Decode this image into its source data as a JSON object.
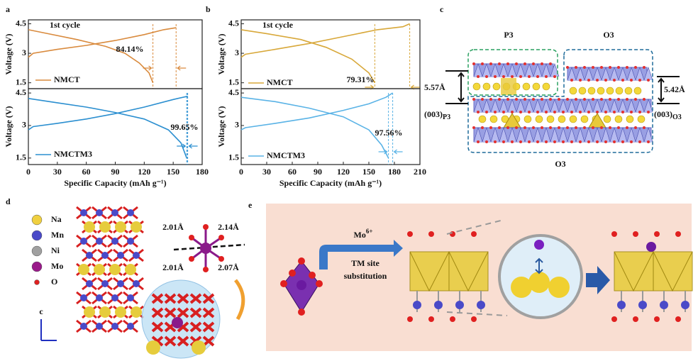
{
  "panel_labels": [
    "a",
    "b",
    "c",
    "d",
    "e"
  ],
  "chart_data": [
    {
      "type": "line",
      "ylabel": "Voltage (V)",
      "note": "1st cycle",
      "label": "NMCT",
      "annotation": "84.14%",
      "xlim": [
        0,
        180
      ],
      "ylim": [
        1.2,
        4.7
      ],
      "yticks": [
        1.5,
        3.0,
        4.5
      ],
      "series": [
        {
          "color": "#d98a3d",
          "x": [
            0,
            5,
            30,
            60,
            90,
            120,
            140,
            153
          ],
          "values": [
            2.8,
            3.0,
            3.2,
            3.4,
            3.65,
            3.95,
            4.2,
            4.3
          ]
        },
        {
          "color": "#d98a3d",
          "x": [
            0,
            20,
            50,
            80,
            100,
            115,
            125,
            129
          ],
          "values": [
            4.2,
            4.0,
            3.7,
            3.35,
            3.0,
            2.5,
            2.0,
            1.5
          ]
        }
      ]
    },
    {
      "type": "line",
      "ylabel": "Voltage (V)",
      "xlabel": "Specific Capacity (mAh g⁻¹)",
      "label": "NMCTM3",
      "annotation": "99.65%",
      "xlim": [
        0,
        180
      ],
      "ylim": [
        1.2,
        4.7
      ],
      "yticks": [
        1.5,
        3.0,
        4.5
      ],
      "xticks": [
        0,
        30,
        60,
        90,
        120,
        150,
        180
      ],
      "series": [
        {
          "color": "#2b8fd0",
          "x": [
            0,
            5,
            30,
            60,
            90,
            120,
            150,
            165
          ],
          "values": [
            2.8,
            2.95,
            3.1,
            3.3,
            3.55,
            3.85,
            4.2,
            4.35
          ]
        },
        {
          "color": "#2b8fd0",
          "x": [
            0,
            30,
            60,
            90,
            120,
            145,
            158,
            164
          ],
          "values": [
            4.25,
            4.05,
            3.85,
            3.6,
            3.3,
            2.8,
            2.2,
            1.5
          ]
        }
      ]
    },
    {
      "type": "line",
      "ylabel": "Voltage (V)",
      "note": "1st cycle",
      "label": "NMCT",
      "annotation": "79.31%",
      "xlim": [
        0,
        210
      ],
      "ylim": [
        1.2,
        4.7
      ],
      "yticks": [
        1.5,
        3.0,
        4.5
      ],
      "series": [
        {
          "color": "#d8a83a",
          "x": [
            0,
            5,
            40,
            80,
            120,
            160,
            190,
            198
          ],
          "values": [
            2.8,
            2.95,
            3.2,
            3.5,
            3.85,
            4.2,
            4.35,
            4.5
          ]
        },
        {
          "color": "#d8a83a",
          "x": [
            0,
            30,
            70,
            100,
            130,
            150,
            157
          ],
          "values": [
            4.2,
            4.0,
            3.7,
            3.3,
            2.7,
            2.0,
            1.5
          ]
        }
      ]
    },
    {
      "type": "line",
      "ylabel": "Voltage (V)",
      "xlabel": "Specific Capacity (mAh g⁻¹)",
      "label": "NMCTM3",
      "annotation": "97.56%",
      "xlim": [
        0,
        210
      ],
      "ylim": [
        1.2,
        4.7
      ],
      "yticks": [
        1.5,
        3.0,
        4.5
      ],
      "xticks": [
        0,
        30,
        60,
        90,
        120,
        150,
        180,
        210
      ],
      "series": [
        {
          "color": "#5ab3e6",
          "x": [
            0,
            5,
            40,
            80,
            120,
            150,
            170,
            178
          ],
          "values": [
            2.8,
            2.9,
            3.1,
            3.35,
            3.7,
            4.0,
            4.3,
            4.5
          ]
        },
        {
          "color": "#5ab3e6",
          "x": [
            0,
            40,
            80,
            120,
            150,
            165,
            173
          ],
          "values": [
            4.3,
            4.1,
            3.8,
            3.4,
            2.8,
            2.1,
            1.5
          ]
        }
      ]
    }
  ],
  "panel_c": {
    "p3": "P3",
    "o3_top": "O3",
    "o3_bottom": "O3",
    "d_p3": "5.57Å",
    "d_o3": "5.42Å",
    "plane": "(003)",
    "sub_p3": "P3",
    "sub_o3": "O3"
  },
  "panel_d": {
    "legend": [
      "Na",
      "Mn",
      "Ni",
      "Mo",
      "O"
    ],
    "bonds": [
      "2.01Å",
      "2.14Å",
      "2.01Å",
      "2.07Å"
    ],
    "axis": "c"
  },
  "panel_e": {
    "ion": "Mo",
    "charge": "6+",
    "line1": "TM site",
    "line2": "substitution"
  }
}
